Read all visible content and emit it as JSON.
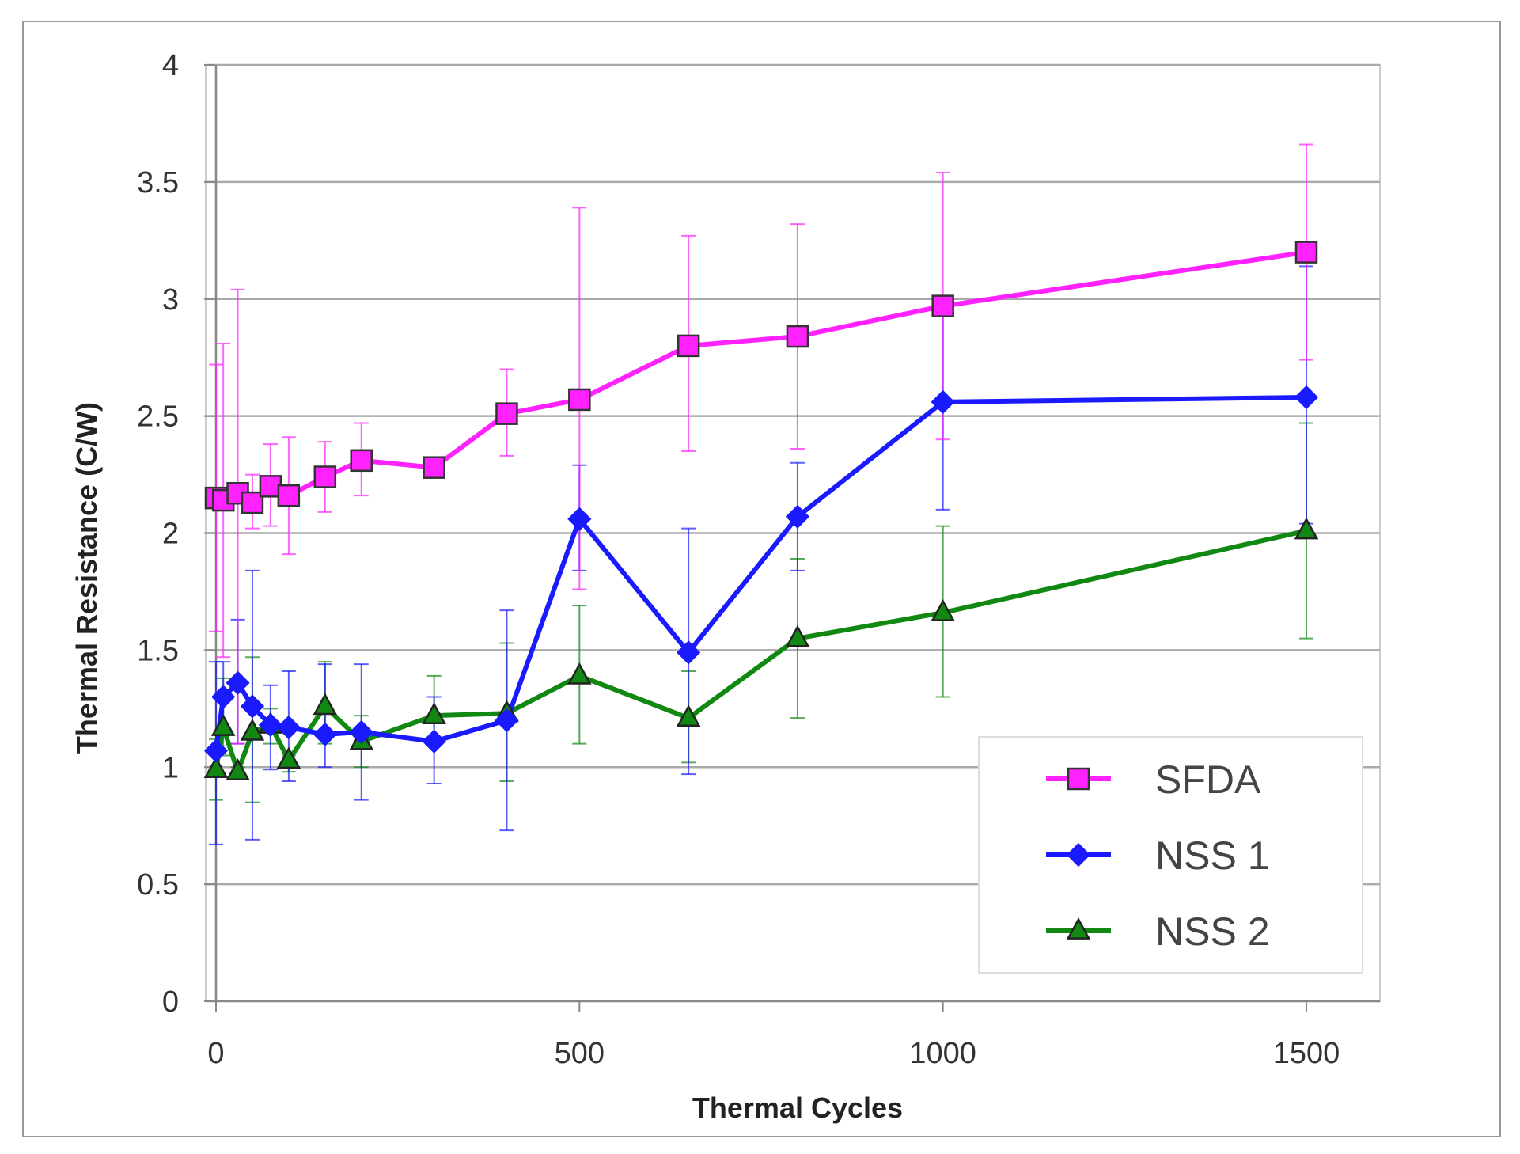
{
  "chart_data": {
    "type": "line",
    "title": "",
    "xlabel": "Thermal Cycles",
    "ylabel": "Thermal Resistance (C/W)",
    "xlim": [
      0,
      1500
    ],
    "ylim": [
      0,
      4
    ],
    "xticks": [
      "0",
      "500",
      "1000",
      "1500"
    ],
    "yticks": [
      "0",
      "0.5",
      "1",
      "1.5",
      "2",
      "2.5",
      "3",
      "3.5",
      "4"
    ],
    "grid": "horizontal",
    "legend_position": "bottom-right",
    "error_bars": true,
    "x": [
      0,
      10,
      30,
      50,
      75,
      100,
      150,
      200,
      300,
      400,
      500,
      650,
      800,
      1000,
      1500
    ],
    "series": [
      {
        "name": "SFDA",
        "color": "#ff22ff",
        "marker": "square",
        "values": [
          2.15,
          2.14,
          2.17,
          2.13,
          2.2,
          2.16,
          2.24,
          2.31,
          2.28,
          2.51,
          2.57,
          2.8,
          2.84,
          2.97,
          3.2
        ],
        "err_high": [
          2.72,
          2.81,
          3.04,
          2.25,
          2.38,
          2.41,
          2.39,
          2.47,
          2.3,
          2.7,
          3.39,
          3.27,
          3.32,
          3.54,
          3.66
        ],
        "err_low": [
          1.58,
          1.47,
          1.1,
          2.02,
          2.03,
          1.91,
          2.09,
          2.16,
          2.26,
          2.33,
          1.76,
          2.35,
          2.36,
          2.4,
          2.74
        ]
      },
      {
        "name": "NSS 1",
        "color": "#1a1aff",
        "marker": "diamond",
        "values": [
          1.07,
          1.3,
          1.36,
          1.26,
          1.18,
          1.17,
          1.14,
          1.15,
          1.11,
          1.2,
          2.06,
          1.49,
          2.07,
          2.56,
          2.58
        ],
        "err_high": [
          1.45,
          1.45,
          1.63,
          1.84,
          1.35,
          1.41,
          1.44,
          1.44,
          1.3,
          1.67,
          2.29,
          2.02,
          2.3,
          2.97,
          3.14
        ],
        "err_low": [
          0.67,
          1.15,
          1.1,
          0.69,
          0.99,
          0.94,
          1.0,
          0.86,
          0.93,
          0.73,
          1.84,
          0.97,
          1.84,
          2.1,
          2.04
        ]
      },
      {
        "name": "NSS 2",
        "color": "#118811",
        "marker": "triangle",
        "values": [
          0.99,
          1.17,
          0.98,
          1.15,
          1.18,
          1.03,
          1.26,
          1.11,
          1.22,
          1.23,
          1.39,
          1.21,
          1.55,
          1.66,
          2.01
        ],
        "err_high": [
          1.12,
          1.38,
          1.0,
          1.47,
          1.25,
          1.05,
          1.45,
          1.22,
          1.39,
          1.53,
          1.69,
          1.41,
          1.89,
          2.03,
          2.47
        ],
        "err_low": [
          0.86,
          1.05,
          0.95,
          0.85,
          1.1,
          0.98,
          1.1,
          1.0,
          1.1,
          0.94,
          1.1,
          1.02,
          1.21,
          1.3,
          1.55
        ]
      }
    ]
  }
}
